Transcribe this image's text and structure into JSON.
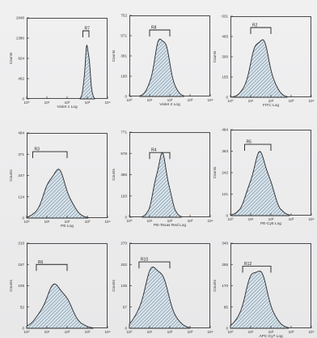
{
  "chart_data": [
    {
      "type": "histogram",
      "xlabel": "Violet 1 Log",
      "ylabel": "Counts",
      "ylim": [
        0,
        1848
      ],
      "yticks": [
        "1848",
        "1386",
        "924",
        "462",
        "0"
      ],
      "xticks": [
        "10⁰",
        "10¹",
        "10²",
        "10³",
        "10⁴"
      ],
      "gate": {
        "label": "R7",
        "range": [
          600,
          1200
        ]
      },
      "peak_x": 1000,
      "peak_y": 1300
    },
    {
      "type": "histogram",
      "xlabel": "Violet 2 Log",
      "ylabel": "Counts",
      "ylim": [
        0,
        752
      ],
      "yticks": [
        "752",
        "571",
        "381",
        "190",
        "0"
      ],
      "xticks": [
        "10⁰",
        "10¹",
        "10²",
        "10³",
        "10⁴"
      ],
      "gate": {
        "label": "R8",
        "range": [
          10,
          100
        ]
      },
      "peak_x": 40,
      "peak_y": 600
    },
    {
      "type": "histogram",
      "xlabel": "FITC Log",
      "ylabel": "Counts",
      "ylim": [
        0,
        631
      ],
      "yticks": [
        "631",
        "465",
        "300",
        "155",
        "0"
      ],
      "xticks": [
        "10⁰",
        "10¹",
        "10²",
        "10³",
        "10⁴"
      ],
      "gate": {
        "label": "R2",
        "range": [
          10,
          100
        ]
      },
      "peak_x": 30,
      "peak_y": 500
    },
    {
      "type": "histogram",
      "xlabel": "PE Log",
      "ylabel": "Counts",
      "ylim": [
        0,
        494
      ],
      "yticks": [
        "494",
        "371",
        "247",
        "124",
        "0"
      ],
      "xticks": [
        "10⁰",
        "10¹",
        "10²",
        "10³",
        "10⁴"
      ],
      "gate": {
        "label": "R3",
        "range": [
          2,
          100
        ]
      },
      "peak_x": 30,
      "peak_y": 300
    },
    {
      "type": "histogram",
      "xlabel": "PE-Texas Red Log",
      "ylabel": "Counts",
      "ylim": [
        0,
        771
      ],
      "yticks": [
        "771",
        "578",
        "385",
        "193",
        "0"
      ],
      "xticks": [
        "10⁰",
        "10¹",
        "10²",
        "10³",
        "10⁴"
      ],
      "gate": {
        "label": "R4",
        "range": [
          10,
          100
        ]
      },
      "peak_x": 40,
      "peak_y": 600
    },
    {
      "type": "histogram",
      "xlabel": "PE-Cy5 Log",
      "ylabel": "Counts",
      "ylim": [
        0,
        484
      ],
      "yticks": [
        "484",
        "363",
        "242",
        "121",
        "0"
      ],
      "xticks": [
        "10⁰",
        "10¹",
        "10²",
        "10³",
        "10⁴"
      ],
      "gate": {
        "label": "R5",
        "range": [
          5,
          100
        ]
      },
      "peak_x": 30,
      "peak_y": 370
    },
    {
      "type": "histogram",
      "xlabel": "",
      "ylabel": "Counts",
      "ylim": [
        0,
        210
      ],
      "yticks": [
        "210",
        "157",
        "105",
        "52",
        "0"
      ],
      "xticks": [
        "10⁰",
        "10¹",
        "10²",
        "10³",
        "10⁴"
      ],
      "gate": {
        "label": "R6",
        "range": [
          3,
          100
        ]
      },
      "peak_x": 30,
      "peak_y": 115
    },
    {
      "type": "histogram",
      "xlabel": "",
      "ylabel": "Counts",
      "ylim": [
        0,
        270
      ],
      "yticks": [
        "270",
        "202",
        "135",
        "67",
        "0"
      ],
      "xticks": [
        "10⁰",
        "10¹",
        "10²",
        "10³",
        "10⁴"
      ],
      "gate": {
        "label": "R10",
        "range": [
          3,
          100
        ]
      },
      "peak_x": 20,
      "peak_y": 215
    },
    {
      "type": "histogram",
      "xlabel": "APC-Cy7 Log",
      "ylabel": "Counts",
      "ylim": [
        0,
        340
      ],
      "yticks": [
        "340",
        "255",
        "170",
        "85",
        "0"
      ],
      "xticks": [
        "10⁰",
        "10¹",
        "10²",
        "10³",
        "10⁴"
      ],
      "gate": {
        "label": "R12",
        "range": [
          4,
          100
        ]
      },
      "peak_x": 20,
      "peak_y": 260
    }
  ]
}
